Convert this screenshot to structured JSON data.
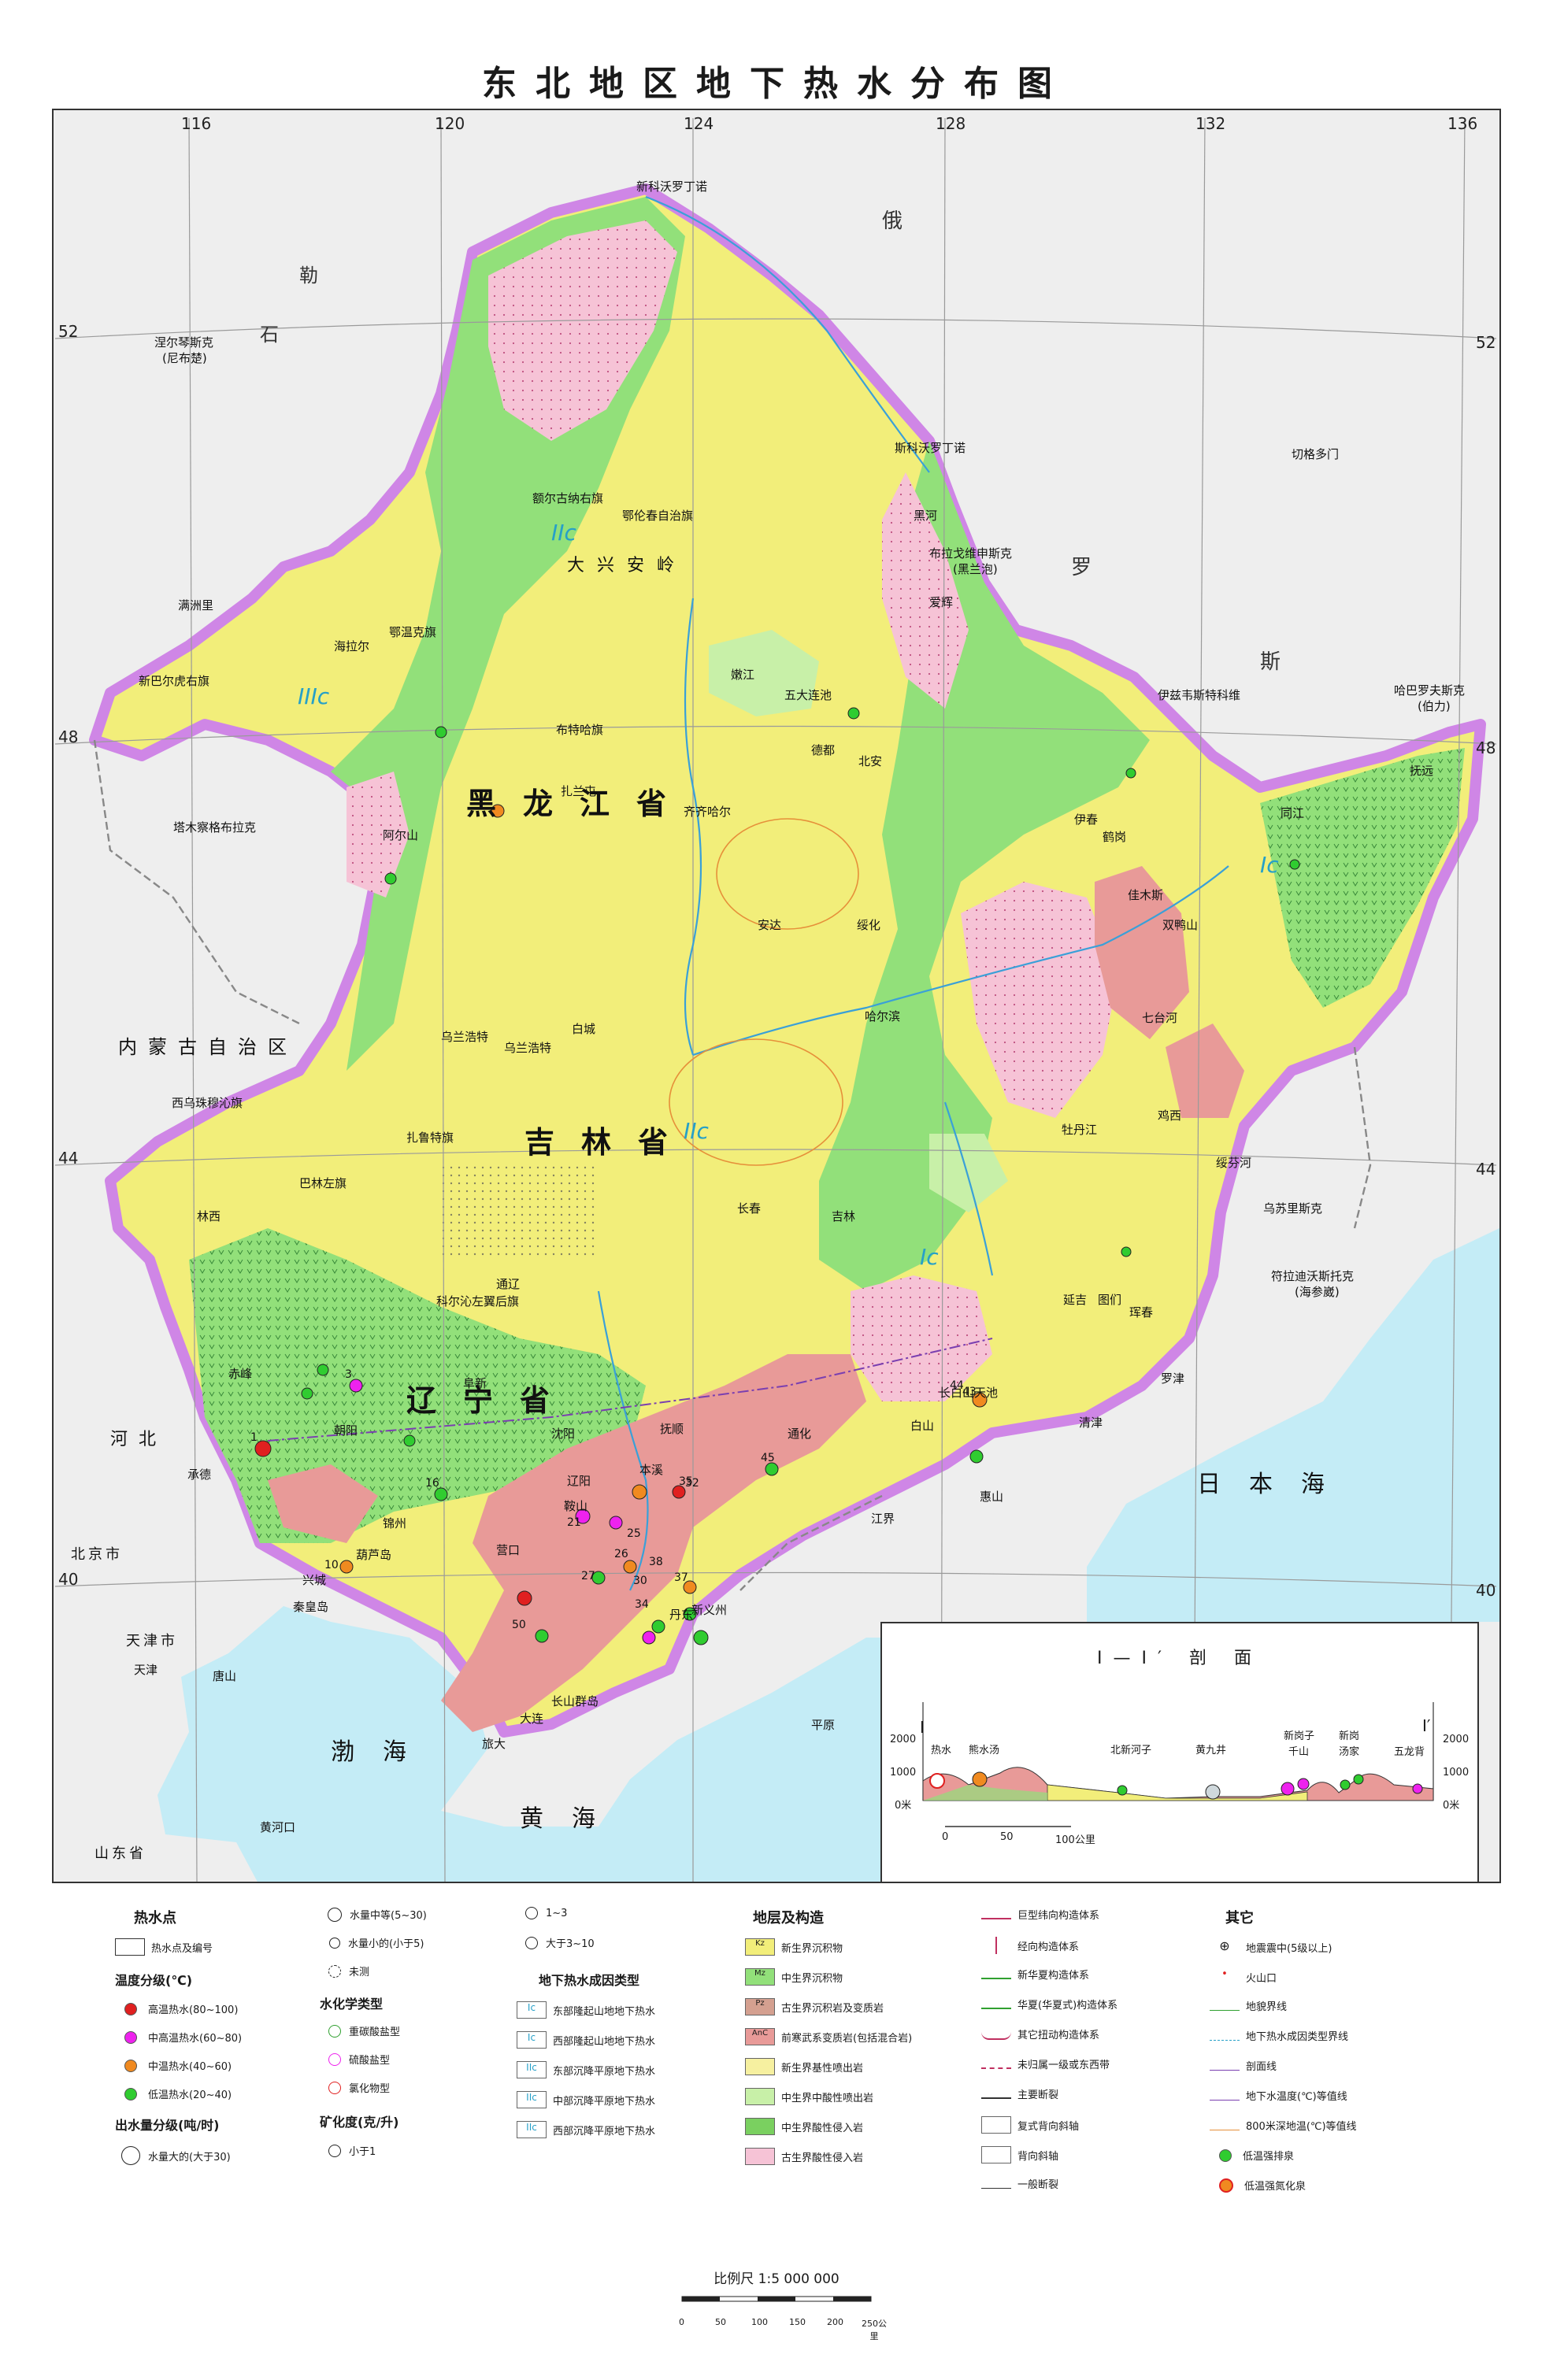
{
  "title": "东北地区地下热水分布图",
  "graticule": {
    "lon_top": [
      "116",
      "120",
      "124",
      "128",
      "132",
      "136"
    ],
    "lat_left": [
      "52",
      "48",
      "44",
      "40"
    ],
    "lat_right": [
      "52",
      "48",
      "44",
      "40"
    ]
  },
  "provinces": {
    "heilongjiang": "黑龙江省",
    "jilin": "吉林省",
    "liaoning": "辽宁省",
    "neimenggu": "内蒙古自治区",
    "hebei": "河北",
    "hebei_shi": "北京市",
    "tianjin": "天津市",
    "shandong": "山东省"
  },
  "seas": {
    "japan": "日本海",
    "bohai": "渤海",
    "huanghai": "黄海"
  },
  "countries": {
    "russia1": "俄",
    "russia2": "罗",
    "russia3": "斯",
    "mongolia1": "石",
    "mongolia2": "勒"
  },
  "zones": {
    "z1": "IIIc",
    "z2": "IIc",
    "z3": "IIc",
    "z4": "Ic",
    "z5": "Ic"
  },
  "places": {
    "p01": "新科沃罗丁诺",
    "p02": "涅尔琴斯克",
    "p03": "(尼布楚)",
    "p04": "斯科沃罗丁诺",
    "p05": "切格多门",
    "p06": "布拉戈维申斯克",
    "p07": "(黑兰泡)",
    "p08": "伊兹韦斯特科维",
    "p09": "哈巴罗夫斯克",
    "p10": "(伯力)",
    "p11": "满洲里",
    "p12": "新巴尔虎右旗",
    "p13": "塔木察格布拉克",
    "p14": "海拉尔",
    "p15": "鄂温克旗",
    "p16": "额尔古纳右旗",
    "p17": "鄂伦春自治旗",
    "p18": "黑河",
    "p19": "爱辉",
    "p20": "五大连池",
    "p21": "嫩江",
    "p22": "北安",
    "p23": "德都",
    "p24": "扎兰屯",
    "p25": "齐齐哈尔",
    "p26": "伊春",
    "p27": "鹤岗",
    "p28": "佳木斯",
    "p29": "同江",
    "p30": "抚远",
    "p31": "哈尔滨",
    "p32": "绥化",
    "p33": "安达",
    "p34": "牡丹江",
    "p35": "鸡西",
    "p36": "七台河",
    "p37": "双鸭山",
    "p38": "绥芬河",
    "p39": "乌苏里斯克",
    "p40": "符拉迪沃斯托克",
    "p41": "(海参崴)",
    "p42": "白城",
    "p43": "乌兰浩特",
    "p44": "长春",
    "p45": "吉林",
    "p46": "延吉",
    "p47": "图们",
    "p48": "珲春",
    "p49": "通化",
    "p50": "白山",
    "p51": "长白山天池",
    "p52": "沈阳",
    "p53": "抚顺",
    "p54": "本溪",
    "p55": "辽阳",
    "p56": "鞍山",
    "p57": "营口",
    "p58": "丹东",
    "p59": "大连",
    "p60": "旅大",
    "p61": "锦州",
    "p62": "阜新",
    "p63": "朝阳",
    "p64": "葫芦岛",
    "p65": "兴城",
    "p66": "赤峰",
    "p67": "通辽",
    "p68": "科尔沁左翼后旗",
    "p69": "西乌珠穆沁旗",
    "p70": "巴林左旗",
    "p71": "林西",
    "p72": "承德",
    "p73": "秦皇岛",
    "p74": "唐山",
    "p75": "天津",
    "p76": "黄河口",
    "p77": "平原",
    "p78": "长山群岛",
    "p79": "江界",
    "p80": "惠山",
    "p81": "罗津",
    "p82": "清津",
    "p83": "阿尔山",
    "p84": "新义州",
    "p85": "乌兰浩特",
    "p86": "扎鲁特旗",
    "p87": "布特哈旗",
    "p88": "大兴安岭"
  },
  "springs": {
    "s01": "1",
    "s02": "3",
    "s03": "10",
    "s04": "16",
    "s05": "21",
    "s06": "25",
    "s07": "26",
    "s08": "27",
    "s09": "30",
    "s10": "32",
    "s11": "34",
    "s12": "35",
    "s13": "37",
    "s14": "38",
    "s15": "43",
    "s16": "44",
    "s17": "45",
    "s18": "50"
  },
  "cross_section": {
    "title": "I—I′ 剖 面",
    "left_mark": "I",
    "right_mark": "I′",
    "elev_left": [
      "2000",
      "1000",
      "0米"
    ],
    "elev_right": [
      "2000",
      "1000",
      "0米"
    ],
    "labels": [
      "热水",
      "熊水汤",
      "北新河子",
      "黄九井",
      "新岗子",
      "千山",
      "新岗",
      "汤家",
      "五龙背"
    ],
    "scale": [
      "0",
      "50",
      "100公里"
    ]
  },
  "legend": {
    "col1_head": "热水点",
    "col1_item1": "热水点及编号",
    "col1_sub1": "温度分级(℃)",
    "temp_items": [
      "高温热水(80~100)",
      "中高温热水(60~80)",
      "中温热水(40~60)",
      "低温热水(20~40)"
    ],
    "col1_sub2": "出水量分级(吨/时)",
    "flow_large": "水量大的(大于30)",
    "flow_mid": "水量中等(5~30)",
    "flow_small": "水量小的(小于5)",
    "flow_unknown": "未测",
    "chem_head": "水化学类型",
    "chem_items": [
      "重碳酸盐型",
      "硫酸盐型",
      "氯化物型"
    ],
    "min_head": "矿化度(克/升)",
    "min_items": [
      "小于1",
      "1~3",
      "大于3~10"
    ],
    "genesis_head": "地下热水成因类型",
    "genesis_items": [
      "东部隆起山地地下热水",
      "西部隆起山地地下热水",
      "东部沉降平原地下热水",
      "中部沉降平原地下热水",
      "西部沉降平原地下热水"
    ],
    "genesis_codes": [
      "Ic",
      "Ic",
      "IIc",
      "IIc",
      "IIc"
    ],
    "strata_head": "地层及构造",
    "strata_items": [
      "新生界沉积物",
      "中生界沉积物",
      "古生界沉积岩及变质岩",
      "前寒武系变质岩(包括混合岩)",
      "新生界基性喷出岩",
      "中生界中酸性喷出岩",
      "中生界酸性侵入岩",
      "古生界酸性侵入岩"
    ],
    "strata_codes": [
      "Kz",
      "Mz",
      "Pz",
      "AnC",
      "",
      "",
      "",
      ""
    ],
    "struct_items": [
      "巨型纬向构造体系",
      "经向构造体系",
      "新华夏构造体系",
      "华夏(华夏式)构造体系",
      "其它扭动构造体系",
      "未归属一级或东西带",
      "主要断裂",
      "复式背向斜轴",
      "背向斜轴",
      "一般断裂"
    ],
    "other_head": "其它",
    "other_items": [
      "地震震中(5级以上)",
      "火山口",
      "地貌界线",
      "地下热水成因类型界线",
      "剖面线",
      "地下水温度(℃)等值线",
      "800米深地温(℃)等值线",
      "低温强排泉",
      "低温强氮化泉"
    ]
  },
  "scale_bar": {
    "text": "比例尺  1:5 000 000",
    "ticks": [
      "0",
      "50",
      "100",
      "150",
      "200",
      "250公里"
    ]
  },
  "colors": {
    "cenozoic_yellow": "#f2ee7a",
    "mesozoic_green": "#92e07a",
    "paleozoic_pink": "#f6c3d6",
    "granite_salmon": "#e89a98",
    "volcanic_light": "#c8f0a8",
    "border_purple": "#cf86e6",
    "sea_blue": "#c4ecf6",
    "outside_gray": "#eeeeee"
  }
}
